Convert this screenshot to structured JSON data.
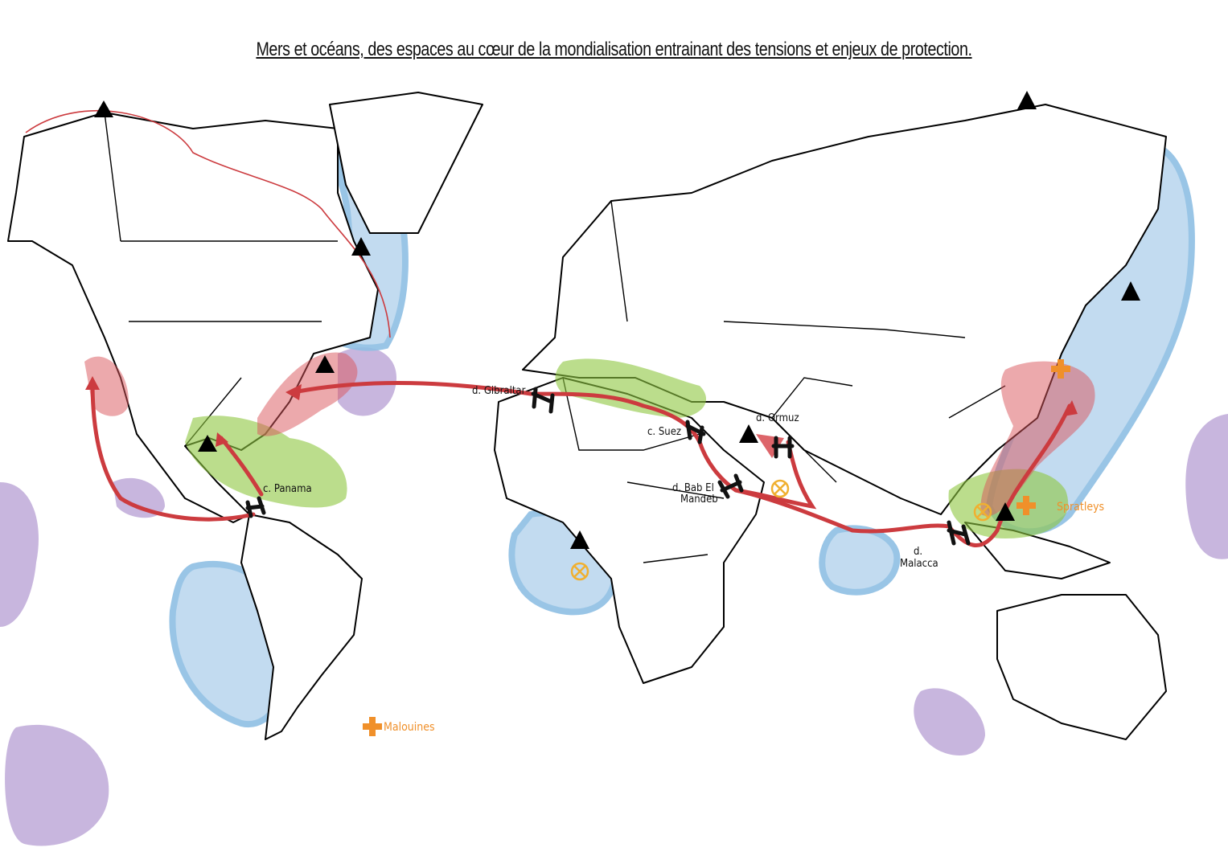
{
  "title": "Mers et océans, des espaces au cœur de la mondialisation entrainant des tensions et enjeux de protection.",
  "labels": {
    "gibraltar": "d. Gibraltar",
    "suez": "c. Suez",
    "ormuz": "d. Ormuz",
    "bab1": "d. Bab El",
    "bab2": "Mandeb",
    "panama": "c. Panama",
    "malacca1": "d.",
    "malacca2": "Malacca",
    "malouines": "Malouines",
    "spratleys": "Spratleys"
  },
  "colors": {
    "route": "#cc3b3f",
    "protected_zone": "#bcd8ef",
    "purple_zone": "#c8b6de",
    "green_zone": "#8ec63f",
    "tension_zone": "#d9545a",
    "dispute": "#f0902a",
    "piracy": "#f0b030"
  },
  "icons": [
    "triangle-icon",
    "chokepoint-icon",
    "dispute-cross-icon",
    "piracy-icon"
  ]
}
